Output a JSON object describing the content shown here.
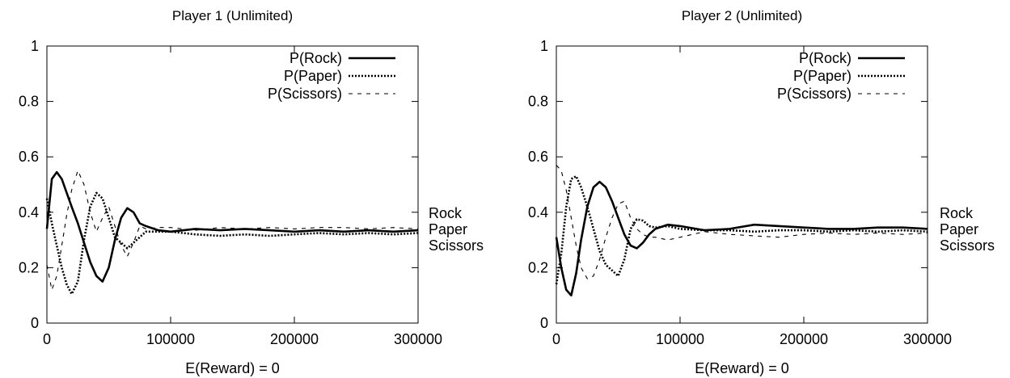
{
  "chart_data": [
    {
      "type": "line",
      "title": "Player 1 (Unlimited)",
      "xlabel": "E(Reward) = 0",
      "ylabel": "",
      "xlim": [
        0,
        300000
      ],
      "ylim": [
        0,
        1
      ],
      "xticks": [
        0,
        100000,
        200000,
        300000
      ],
      "yticks": [
        0,
        0.2,
        0.4,
        0.6,
        0.8,
        1
      ],
      "legend_position": "top-right",
      "side_labels": [
        "Rock",
        "Paper",
        "Scissors"
      ],
      "series": [
        {
          "name": "P(Rock)",
          "style": "solid",
          "x": [
            0,
            4000,
            8000,
            12000,
            16000,
            20000,
            25000,
            30000,
            35000,
            40000,
            45000,
            50000,
            55000,
            60000,
            65000,
            70000,
            75000,
            80000,
            90000,
            100000,
            120000,
            140000,
            160000,
            180000,
            200000,
            220000,
            240000,
            260000,
            280000,
            300000
          ],
          "y": [
            0.34,
            0.52,
            0.545,
            0.52,
            0.47,
            0.42,
            0.36,
            0.29,
            0.22,
            0.17,
            0.15,
            0.2,
            0.3,
            0.38,
            0.415,
            0.4,
            0.36,
            0.35,
            0.335,
            0.33,
            0.34,
            0.335,
            0.34,
            0.335,
            0.33,
            0.335,
            0.33,
            0.335,
            0.33,
            0.335
          ]
        },
        {
          "name": "P(Paper)",
          "style": "dotted",
          "x": [
            0,
            4000,
            8000,
            12000,
            16000,
            20000,
            25000,
            30000,
            35000,
            40000,
            45000,
            50000,
            55000,
            60000,
            65000,
            70000,
            75000,
            80000,
            90000,
            100000,
            120000,
            140000,
            160000,
            180000,
            200000,
            220000,
            240000,
            260000,
            280000,
            300000
          ],
          "y": [
            0.45,
            0.36,
            0.28,
            0.2,
            0.14,
            0.105,
            0.15,
            0.3,
            0.42,
            0.47,
            0.45,
            0.38,
            0.31,
            0.29,
            0.27,
            0.29,
            0.31,
            0.33,
            0.33,
            0.33,
            0.32,
            0.315,
            0.32,
            0.315,
            0.32,
            0.325,
            0.32,
            0.325,
            0.32,
            0.325
          ]
        },
        {
          "name": "P(Scissors)",
          "style": "dashed",
          "x": [
            0,
            4000,
            8000,
            12000,
            16000,
            20000,
            25000,
            30000,
            35000,
            40000,
            45000,
            50000,
            55000,
            60000,
            65000,
            70000,
            75000,
            80000,
            90000,
            100000,
            120000,
            140000,
            160000,
            180000,
            200000,
            220000,
            240000,
            260000,
            280000,
            300000
          ],
          "y": [
            0.21,
            0.12,
            0.17,
            0.28,
            0.39,
            0.48,
            0.55,
            0.5,
            0.4,
            0.33,
            0.38,
            0.42,
            0.35,
            0.28,
            0.24,
            0.29,
            0.35,
            0.34,
            0.345,
            0.345,
            0.335,
            0.345,
            0.34,
            0.345,
            0.34,
            0.345,
            0.345,
            0.34,
            0.345,
            0.34
          ]
        }
      ]
    },
    {
      "type": "line",
      "title": "Player 2 (Unlimited)",
      "xlabel": "E(Reward) = 0",
      "ylabel": "",
      "xlim": [
        0,
        300000
      ],
      "ylim": [
        0,
        1
      ],
      "xticks": [
        0,
        100000,
        200000,
        300000
      ],
      "yticks": [
        0,
        0.2,
        0.4,
        0.6,
        0.8,
        1
      ],
      "legend_position": "top-right",
      "side_labels": [
        "Rock",
        "Paper",
        "Scissors"
      ],
      "series": [
        {
          "name": "P(Rock)",
          "style": "solid",
          "x": [
            0,
            4000,
            8000,
            12000,
            16000,
            20000,
            25000,
            30000,
            35000,
            40000,
            45000,
            50000,
            55000,
            60000,
            65000,
            70000,
            75000,
            80000,
            90000,
            100000,
            120000,
            140000,
            160000,
            180000,
            200000,
            220000,
            240000,
            260000,
            280000,
            300000
          ],
          "y": [
            0.31,
            0.2,
            0.12,
            0.1,
            0.18,
            0.3,
            0.42,
            0.49,
            0.51,
            0.49,
            0.44,
            0.38,
            0.32,
            0.28,
            0.27,
            0.29,
            0.32,
            0.34,
            0.355,
            0.35,
            0.335,
            0.34,
            0.355,
            0.35,
            0.345,
            0.34,
            0.34,
            0.345,
            0.345,
            0.34
          ]
        },
        {
          "name": "P(Paper)",
          "style": "dotted",
          "x": [
            0,
            4000,
            8000,
            12000,
            16000,
            20000,
            25000,
            30000,
            35000,
            40000,
            45000,
            50000,
            55000,
            60000,
            65000,
            70000,
            75000,
            80000,
            90000,
            100000,
            120000,
            140000,
            160000,
            180000,
            200000,
            220000,
            240000,
            260000,
            280000,
            300000
          ],
          "y": [
            0.14,
            0.25,
            0.42,
            0.52,
            0.53,
            0.49,
            0.42,
            0.34,
            0.26,
            0.21,
            0.19,
            0.17,
            0.23,
            0.34,
            0.375,
            0.37,
            0.35,
            0.345,
            0.35,
            0.34,
            0.335,
            0.335,
            0.33,
            0.335,
            0.335,
            0.33,
            0.335,
            0.33,
            0.335,
            0.33
          ]
        },
        {
          "name": "P(Scissors)",
          "style": "dashed",
          "x": [
            0,
            4000,
            8000,
            12000,
            16000,
            20000,
            25000,
            30000,
            35000,
            40000,
            45000,
            50000,
            55000,
            60000,
            65000,
            70000,
            75000,
            80000,
            90000,
            100000,
            120000,
            140000,
            160000,
            180000,
            200000,
            220000,
            240000,
            260000,
            280000,
            300000
          ],
          "y": [
            0.57,
            0.55,
            0.48,
            0.38,
            0.28,
            0.2,
            0.16,
            0.17,
            0.23,
            0.31,
            0.38,
            0.43,
            0.44,
            0.38,
            0.34,
            0.32,
            0.31,
            0.31,
            0.3,
            0.31,
            0.33,
            0.32,
            0.315,
            0.31,
            0.32,
            0.325,
            0.32,
            0.325,
            0.32,
            0.325
          ]
        }
      ]
    }
  ]
}
